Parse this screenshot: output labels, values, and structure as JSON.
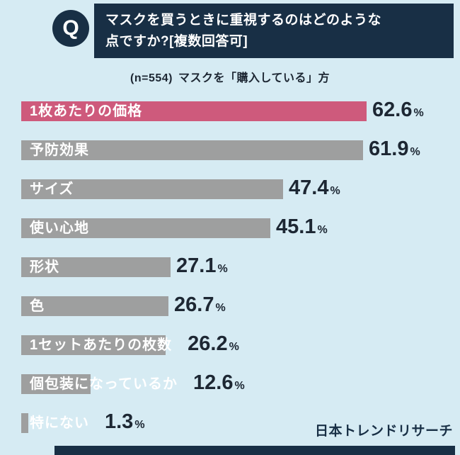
{
  "header": {
    "q_icon": "Q",
    "title_line1": "マスクを買うときに重視するのはどのような",
    "title_line2": "点ですか?[複数回答可]"
  },
  "subtitle": {
    "n_label": "(n=554)",
    "text": "マスクを「購入している」方"
  },
  "chart_data": {
    "type": "bar",
    "orientation": "horizontal",
    "title": "マスクを買うときに重視するのはどのような点ですか?[複数回答可]",
    "subtitle": "(n=554) マスクを「購入している」方",
    "categories": [
      "1枚あたりの価格",
      "予防効果",
      "サイズ",
      "使い心地",
      "形状",
      "色",
      "1セットあたりの枚数",
      "個包装になっているか",
      "特にない"
    ],
    "values": [
      62.6,
      61.9,
      47.4,
      45.1,
      27.1,
      26.7,
      26.2,
      12.6,
      1.3
    ],
    "unit": "%",
    "xlim": [
      0,
      70
    ],
    "highlight_index": 0,
    "legend": "none",
    "grid": "off",
    "colors": {
      "highlight": "#ce5a7c",
      "default": "#9e9f9f",
      "background": "#d6ebf3",
      "navy": "#182f45",
      "value_text": "#1d2733",
      "bar_label": "#ffffff"
    }
  },
  "footer": {
    "credit": "日本トレンドリサーチ"
  }
}
